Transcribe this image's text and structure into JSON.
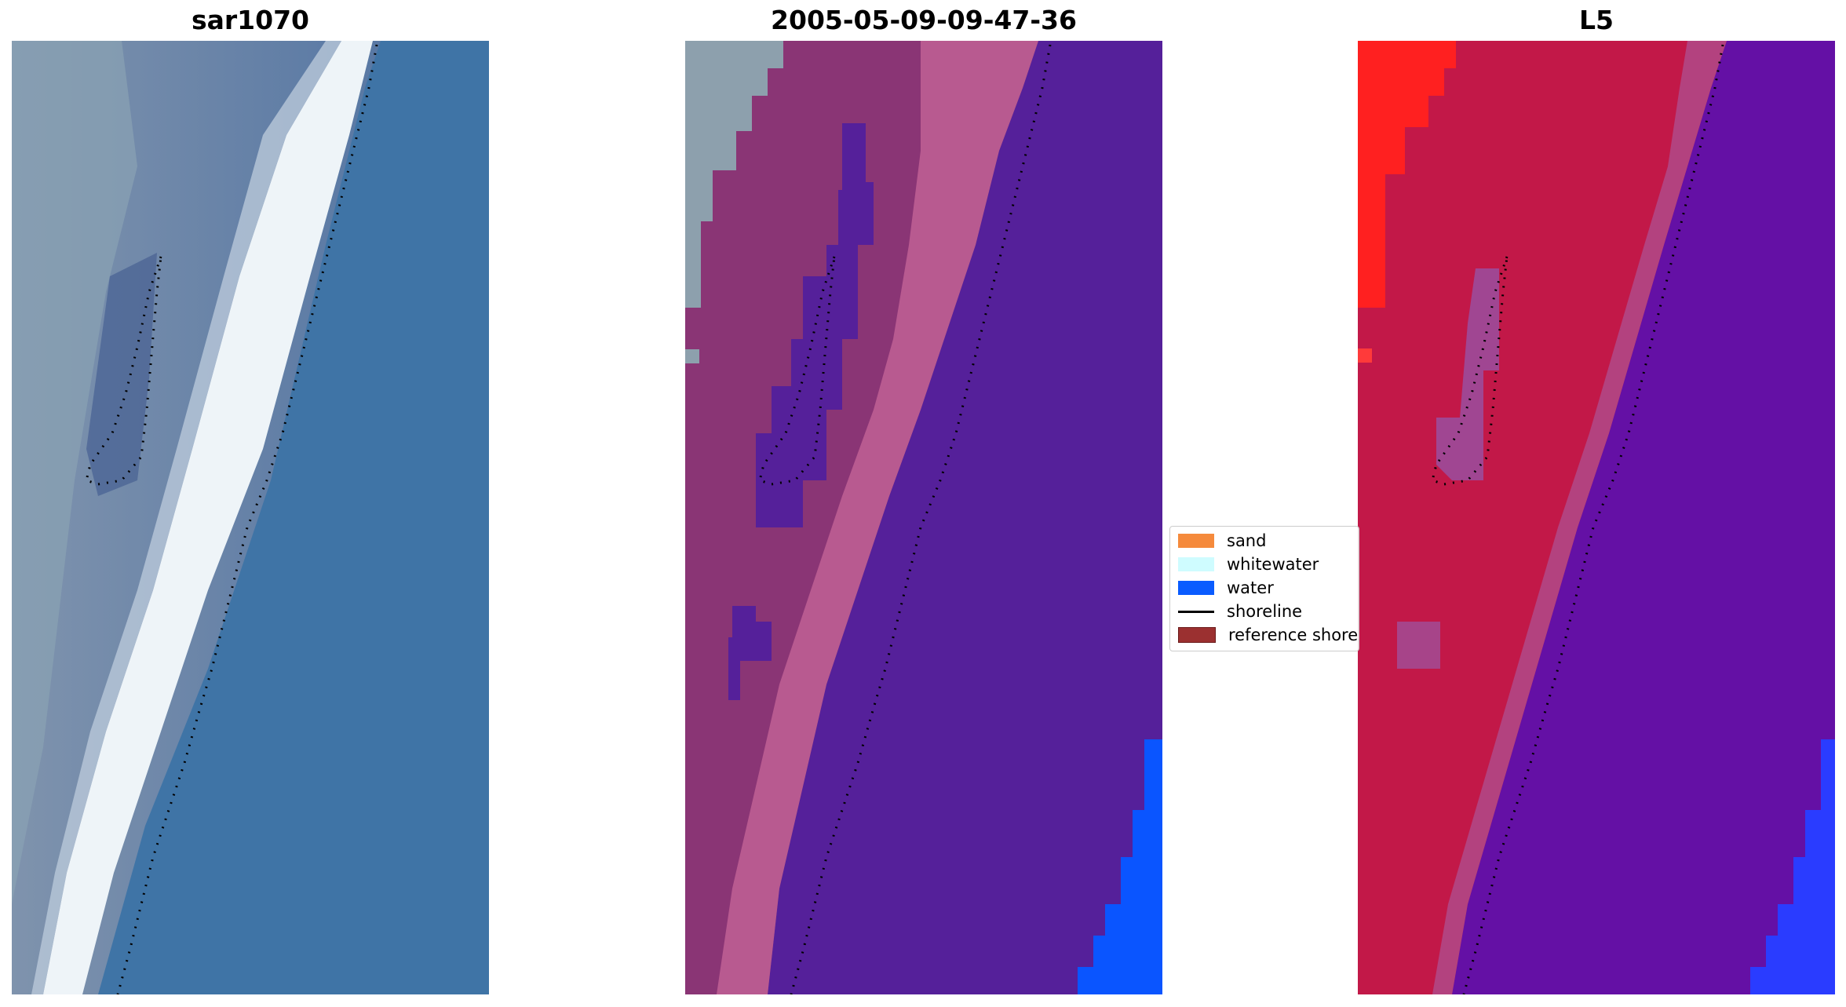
{
  "panels": [
    {
      "title": "sar1070"
    },
    {
      "title": "2005-05-09-09-47-36"
    },
    {
      "title": "L5"
    }
  ],
  "legend": {
    "items": [
      {
        "label": "sand",
        "kind": "patch",
        "color": "#f58a3c"
      },
      {
        "label": "whitewater",
        "kind": "patch",
        "color": "#cffcff"
      },
      {
        "label": "water",
        "kind": "patch",
        "color": "#0a5cff"
      },
      {
        "label": "shoreline",
        "kind": "line",
        "color": "#000000"
      },
      {
        "label": "reference shoreline",
        "kind": "patch",
        "color": "#9b3030"
      }
    ]
  },
  "colors": {
    "sar_water": "#3f74a6",
    "sar_foam": "#eef4f8",
    "class_water": "#55209a",
    "class_sand_overlay": "#b85a90",
    "class_water_blue": "#0a55ff",
    "l5_water": "#6410a5",
    "l5_land": "#c21848",
    "l5_bright": "#ff2020",
    "shoreline_dots": "#000000"
  }
}
